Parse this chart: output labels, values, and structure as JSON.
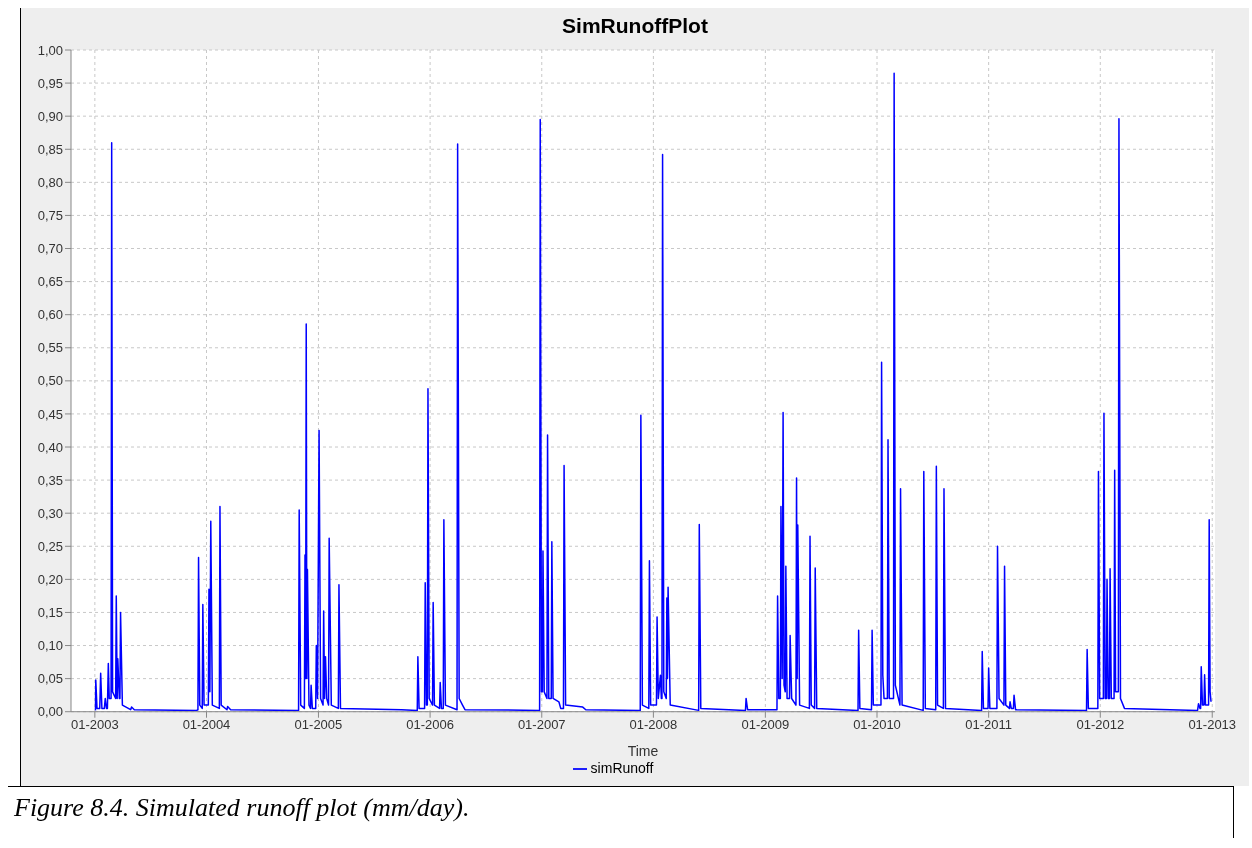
{
  "chart_data": {
    "type": "line",
    "title": "SimRunoffPlot",
    "xlabel": "Time",
    "annotations": [
      "Figure 8.4. Simulated runoff plot (mm/day)."
    ],
    "grid": true,
    "legend": "bottom",
    "marker": "none",
    "xlim": [
      "2002-10-15",
      "2013-01-10"
    ],
    "xticks": [
      {
        "value": "2003-01-01",
        "label": "01-2003"
      },
      {
        "value": "2004-01-01",
        "label": "01-2004"
      },
      {
        "value": "2005-01-01",
        "label": "01-2005"
      },
      {
        "value": "2006-01-01",
        "label": "01-2006"
      },
      {
        "value": "2007-01-01",
        "label": "01-2007"
      },
      {
        "value": "2008-01-01",
        "label": "01-2008"
      },
      {
        "value": "2009-01-01",
        "label": "01-2009"
      },
      {
        "value": "2010-01-01",
        "label": "01-2010"
      },
      {
        "value": "2011-01-01",
        "label": "01-2011"
      },
      {
        "value": "2012-01-01",
        "label": "01-2012"
      },
      {
        "value": "2013-01-01",
        "label": "01-2013"
      }
    ],
    "ylim": [
      0,
      1
    ],
    "yticks": [
      {
        "value": 0,
        "label": "0,00"
      },
      {
        "value": 0.05,
        "label": "0,05"
      },
      {
        "value": 0.1,
        "label": "0,10"
      },
      {
        "value": 0.15,
        "label": "0,15"
      },
      {
        "value": 0.2,
        "label": "0,20"
      },
      {
        "value": 0.25,
        "label": "0,25"
      },
      {
        "value": 0.3,
        "label": "0,30"
      },
      {
        "value": 0.35,
        "label": "0,35"
      },
      {
        "value": 0.4,
        "label": "0,40"
      },
      {
        "value": 0.45,
        "label": "0,45"
      },
      {
        "value": 0.5,
        "label": "0,50"
      },
      {
        "value": 0.55,
        "label": "0,55"
      },
      {
        "value": 0.6,
        "label": "0,60"
      },
      {
        "value": 0.65,
        "label": "0,65"
      },
      {
        "value": 0.7,
        "label": "0,70"
      },
      {
        "value": 0.75,
        "label": "0,75"
      },
      {
        "value": 0.8,
        "label": "0,80"
      },
      {
        "value": 0.85,
        "label": "0,85"
      },
      {
        "value": 0.9,
        "label": "0,90"
      },
      {
        "value": 0.95,
        "label": "0,95"
      },
      {
        "value": 1,
        "label": "1,00"
      }
    ],
    "x": [
      "2003-01-03",
      "2003-01-04",
      "2003-01-08",
      "2003-01-17",
      "2003-01-20",
      "2003-01-24",
      "2003-02-01",
      "2003-02-04",
      "2003-02-08",
      "2003-02-11",
      "2003-02-14",
      "2003-02-17",
      "2003-02-23",
      "2003-02-25",
      "2003-02-28",
      "2003-03-10",
      "2003-03-12",
      "2003-03-15",
      "2003-03-17",
      "2003-03-22",
      "2003-03-24",
      "2003-03-26",
      "2003-04-01",
      "2003-04-28",
      "2003-05-01",
      "2003-05-10",
      "2003-11-30",
      "2003-12-04",
      "2003-12-06",
      "2003-12-10",
      "2003-12-18",
      "2003-12-20",
      "2003-12-24",
      "2004-01-07",
      "2004-01-09",
      "2004-01-12",
      "2004-01-15",
      "2004-01-20",
      "2004-02-12",
      "2004-02-14",
      "2004-02-18",
      "2004-03-08",
      "2004-03-10",
      "2004-03-20",
      "2004-10-28",
      "2004-10-30",
      "2004-11-04",
      "2004-11-16",
      "2004-11-18",
      "2004-11-20",
      "2004-11-22",
      "2004-11-24",
      "2004-11-26",
      "2004-12-01",
      "2004-12-06",
      "2004-12-08",
      "2004-12-12",
      "2004-12-23",
      "2004-12-25",
      "2004-12-29",
      "2005-01-01",
      "2005-01-03",
      "2005-01-08",
      "2005-01-16",
      "2005-01-18",
      "2005-01-21",
      "2005-01-24",
      "2005-01-28",
      "2005-02-03",
      "2005-02-05",
      "2005-02-12",
      "2005-03-07",
      "2005-03-09",
      "2005-03-14",
      "2005-09-30",
      "2005-11-20",
      "2005-11-22",
      "2005-11-26",
      "2005-12-14",
      "2005-12-16",
      "2005-12-20",
      "2005-12-23",
      "2005-12-25",
      "2005-12-29",
      "2006-01-09",
      "2006-01-11",
      "2006-01-15",
      "2006-02-01",
      "2006-02-03",
      "2006-02-07",
      "2006-02-13",
      "2006-02-15",
      "2006-02-20",
      "2006-03-30",
      "2006-04-01",
      "2006-04-06",
      "2006-04-17",
      "2006-04-25",
      "2006-12-25",
      "2006-12-27",
      "2006-12-31",
      "2007-01-03",
      "2007-01-05",
      "2007-01-09",
      "2007-01-18",
      "2007-01-20",
      "2007-01-24",
      "2007-02-01",
      "2007-02-03",
      "2007-02-07",
      "2007-02-26",
      "2007-03-04",
      "2007-03-13",
      "2007-03-15",
      "2007-03-20",
      "2007-05-15",
      "2007-05-25",
      "2007-11-19",
      "2007-11-21",
      "2007-11-26",
      "2007-12-17",
      "2007-12-19",
      "2007-12-23",
      "2008-01-11",
      "2008-01-13",
      "2008-01-17",
      "2008-01-24",
      "2008-01-27",
      "2008-01-29",
      "2008-01-31",
      "2008-02-04",
      "2008-02-12",
      "2008-02-14",
      "2008-02-16",
      "2008-02-18",
      "2008-02-25",
      "2008-05-28",
      "2008-05-30",
      "2008-06-04",
      "2008-10-28",
      "2008-10-30",
      "2008-11-04",
      "2009-02-08",
      "2009-02-10",
      "2009-02-14",
      "2009-02-19",
      "2009-02-21",
      "2009-02-25",
      "2009-02-28",
      "2009-03-03",
      "2009-03-07",
      "2009-03-09",
      "2009-03-13",
      "2009-03-21",
      "2009-03-23",
      "2009-03-28",
      "2009-04-11",
      "2009-04-13",
      "2009-04-15",
      "2009-04-17",
      "2009-04-23",
      "2009-05-25",
      "2009-05-27",
      "2009-05-31",
      "2009-06-11",
      "2009-06-13",
      "2009-06-18",
      "2009-10-31",
      "2009-11-02",
      "2009-11-06",
      "2009-12-14",
      "2009-12-16",
      "2009-12-20",
      "2010-01-14",
      "2010-01-16",
      "2010-01-20",
      "2010-01-24",
      "2010-02-04",
      "2010-02-06",
      "2010-02-10",
      "2010-02-24",
      "2010-02-26",
      "2010-03-02",
      "2010-03-17",
      "2010-03-19",
      "2010-03-24",
      "2010-06-01",
      "2010-06-03",
      "2010-06-08",
      "2010-07-12",
      "2010-07-14",
      "2010-07-18",
      "2010-08-06",
      "2010-08-08",
      "2010-08-13",
      "2010-12-09",
      "2010-12-11",
      "2010-12-15",
      "2010-12-30",
      "2011-01-01",
      "2011-01-05",
      "2011-01-28",
      "2011-01-30",
      "2011-02-04",
      "2011-02-20",
      "2011-02-22",
      "2011-02-26",
      "2011-03-10",
      "2011-03-12",
      "2011-03-16",
      "2011-03-23",
      "2011-03-25",
      "2011-03-30",
      "2011-11-17",
      "2011-11-19",
      "2011-11-23",
      "2011-12-24",
      "2011-12-26",
      "2011-12-30",
      "2012-01-11",
      "2012-01-13",
      "2012-01-17",
      "2012-01-21",
      "2012-01-23",
      "2012-01-27",
      "2012-01-31",
      "2012-02-02",
      "2012-02-06",
      "2012-02-15",
      "2012-02-17",
      "2012-02-20",
      "2012-02-29",
      "2012-03-02",
      "2012-03-07",
      "2012-03-20",
      "2012-11-14",
      "2012-11-17",
      "2012-11-22",
      "2012-11-24",
      "2012-11-26",
      "2012-11-30",
      "2012-12-05",
      "2012-12-07",
      "2012-12-10",
      "2012-12-20",
      "2012-12-22",
      "2012-12-25",
      "2012-12-28"
    ],
    "series": [
      {
        "name": "simRunoff",
        "color": "#0000ff",
        "values": [
          0.002,
          0.048,
          0.005,
          0.005,
          0.058,
          0.005,
          0.005,
          0.02,
          0.005,
          0.005,
          0.073,
          0.02,
          0.02,
          0.86,
          0.03,
          0.02,
          0.175,
          0.02,
          0.08,
          0.02,
          0.02,
          0.15,
          0.01,
          0.003,
          0.007,
          0.003,
          0.002,
          0.003,
          0.233,
          0.01,
          0.005,
          0.162,
          0.01,
          0.01,
          0.185,
          0.03,
          0.288,
          0.01,
          0.005,
          0.31,
          0.01,
          0.003,
          0.008,
          0.003,
          0.002,
          0.305,
          0.01,
          0.005,
          0.237,
          0.05,
          0.586,
          0.05,
          0.215,
          0.01,
          0.005,
          0.04,
          0.005,
          0.005,
          0.1,
          0.02,
          0.265,
          0.425,
          0.02,
          0.01,
          0.152,
          0.02,
          0.083,
          0.02,
          0.01,
          0.262,
          0.01,
          0.005,
          0.192,
          0.005,
          0.003,
          0.002,
          0.083,
          0.005,
          0.005,
          0.195,
          0.01,
          0.01,
          0.488,
          0.02,
          0.01,
          0.165,
          0.01,
          0.005,
          0.044,
          0.005,
          0.005,
          0.29,
          0.01,
          0.003,
          0.858,
          0.02,
          0.01,
          0.003,
          0.002,
          0.895,
          0.03,
          0.03,
          0.243,
          0.03,
          0.02,
          0.418,
          0.02,
          0.02,
          0.257,
          0.02,
          0.015,
          0.005,
          0.005,
          0.372,
          0.01,
          0.007,
          0.003,
          0.002,
          0.448,
          0.01,
          0.005,
          0.228,
          0.01,
          0.01,
          0.143,
          0.02,
          0.055,
          0.02,
          0.02,
          0.842,
          0.03,
          0.02,
          0.172,
          0.05,
          0.188,
          0.01,
          0.002,
          0.283,
          0.005,
          0.002,
          0.02,
          0.003,
          0.003,
          0.175,
          0.02,
          0.02,
          0.31,
          0.05,
          0.452,
          0.04,
          0.03,
          0.22,
          0.02,
          0.02,
          0.115,
          0.02,
          0.01,
          0.353,
          0.05,
          0.282,
          0.01,
          0.005,
          0.265,
          0.01,
          0.005,
          0.217,
          0.005,
          0.002,
          0.123,
          0.005,
          0.003,
          0.123,
          0.01,
          0.01,
          0.528,
          0.055,
          0.02,
          0.02,
          0.411,
          0.02,
          0.02,
          0.965,
          0.04,
          0.01,
          0.337,
          0.01,
          0.002,
          0.363,
          0.005,
          0.003,
          0.371,
          0.01,
          0.005,
          0.337,
          0.005,
          0.002,
          0.091,
          0.005,
          0.005,
          0.066,
          0.005,
          0.005,
          0.25,
          0.02,
          0.01,
          0.22,
          0.01,
          0.005,
          0.015,
          0.005,
          0.005,
          0.025,
          0.003,
          0.002,
          0.094,
          0.005,
          0.005,
          0.363,
          0.02,
          0.02,
          0.451,
          0.02,
          0.02,
          0.2,
          0.02,
          0.02,
          0.216,
          0.02,
          0.02,
          0.365,
          0.03,
          0.03,
          0.896,
          0.02,
          0.005,
          0.002,
          0.012,
          0.005,
          0.005,
          0.068,
          0.01,
          0.01,
          0.056,
          0.01,
          0.01,
          0.29,
          0.03,
          0.015
        ]
      }
    ]
  }
}
